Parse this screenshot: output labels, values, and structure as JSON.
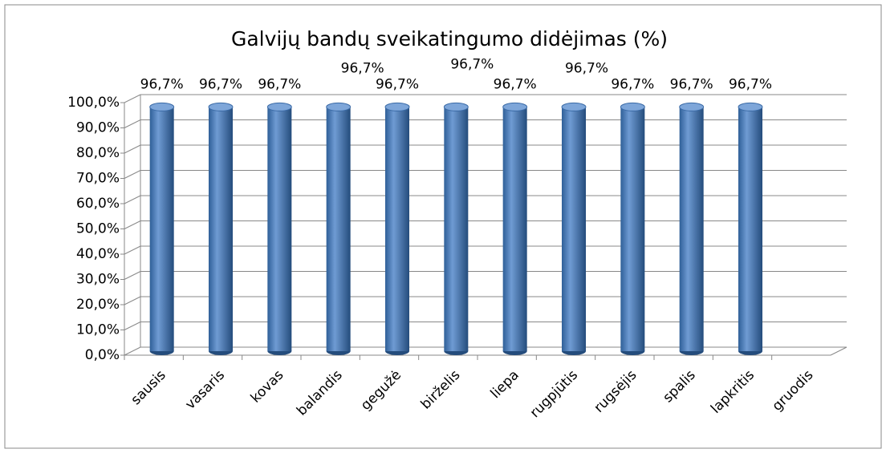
{
  "chart_data": {
    "type": "bar3d-cylinder",
    "title": "Galvijų bandų sveikatingumo didėjimas (%)",
    "categories": [
      "sausis",
      "vasaris",
      "kovas",
      "balandis",
      "gegužė",
      "birželis",
      "liepa",
      "rugpjūtis",
      "rugsėjis",
      "spalis",
      "lapkritis",
      "gruodis"
    ],
    "values": [
      96.7,
      96.7,
      96.7,
      96.7,
      96.7,
      96.7,
      96.7,
      96.7,
      96.7,
      96.7,
      96.7,
      null
    ],
    "value_labels": [
      "96,7%",
      "96,7%",
      "96,7%",
      "96,7%",
      "96,7%",
      "96,7%",
      "96,7%",
      "96,7%",
      "96,7%",
      "96,7%",
      "96,7%",
      null
    ],
    "color": "#4f81bd",
    "ylim": [
      0,
      100
    ],
    "yticks": [
      {
        "value": 0,
        "label": "0,0%"
      },
      {
        "value": 10,
        "label": "10,0%"
      },
      {
        "value": 20,
        "label": "20,0%"
      },
      {
        "value": 30,
        "label": "30,0%"
      },
      {
        "value": 40,
        "label": "40,0%"
      },
      {
        "value": 50,
        "label": "50,0%"
      },
      {
        "value": 60,
        "label": "60,0%"
      },
      {
        "value": 70,
        "label": "70,0%"
      },
      {
        "value": 80,
        "label": "80,0%"
      },
      {
        "value": 90,
        "label": "90,0%"
      },
      {
        "value": 100,
        "label": "100,0%"
      }
    ],
    "grid": true
  }
}
